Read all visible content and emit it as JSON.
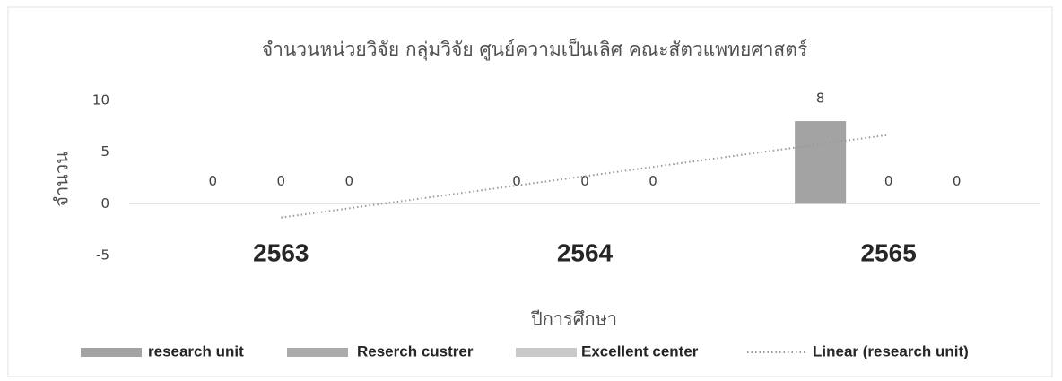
{
  "chart_data": {
    "type": "bar",
    "title": "จำนวนหน่วยวิจัย กลุ่มวิจัย ศูนย์ความเป็นเลิศ คณะสัตวแพทยศาสตร์",
    "x_label": "ปีการศึกษา",
    "y_label": "จำนวน",
    "categories": [
      "2563",
      "2564",
      "2565"
    ],
    "series": [
      {
        "name": "research unit",
        "color": "#a3a3a3",
        "values": [
          0,
          0,
          8
        ]
      },
      {
        "name": "Reserch custrer",
        "color": "#ababab",
        "values": [
          0,
          0,
          0
        ]
      },
      {
        "name": "Excellent center",
        "color": "#c9c9c9",
        "values": [
          0,
          0,
          0
        ]
      }
    ],
    "trendline": {
      "name": "Linear (research unit)",
      "type": "linear",
      "series": 0,
      "color": "#9a9a9a"
    },
    "ylim": [
      -5,
      10
    ],
    "yticks": [
      -5,
      0,
      5,
      10
    ],
    "grid": false,
    "legend": "bottom"
  }
}
